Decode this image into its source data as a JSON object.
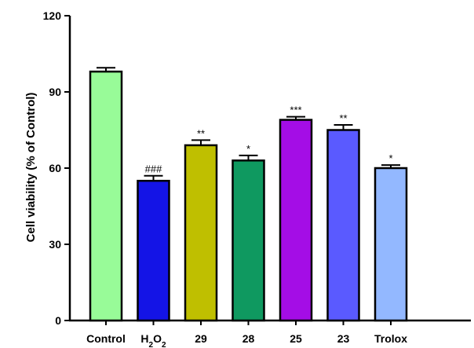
{
  "chart_data": {
    "type": "bar",
    "title": "",
    "xlabel": "",
    "ylabel": "Cell viability (% of Control)",
    "ylim": [
      0,
      120
    ],
    "yticks": [
      "0",
      "30",
      "60",
      "90",
      "120"
    ],
    "categories": [
      "Control",
      "H2O2",
      "29",
      "28",
      "25",
      "23",
      "Trolox"
    ],
    "values": [
      98,
      55,
      69,
      63,
      79,
      75,
      60
    ],
    "errors": [
      1.5,
      2,
      2,
      2,
      1.2,
      2,
      1.2
    ],
    "significance": [
      "",
      "###",
      "**",
      "*",
      "***",
      "**",
      "*"
    ],
    "colors": [
      "#98fb98",
      "#1414e6",
      "#bfbf00",
      "#0f9960",
      "#a40de6",
      "#5a5aff",
      "#93b8ff"
    ],
    "grid": false,
    "legend": "none"
  }
}
